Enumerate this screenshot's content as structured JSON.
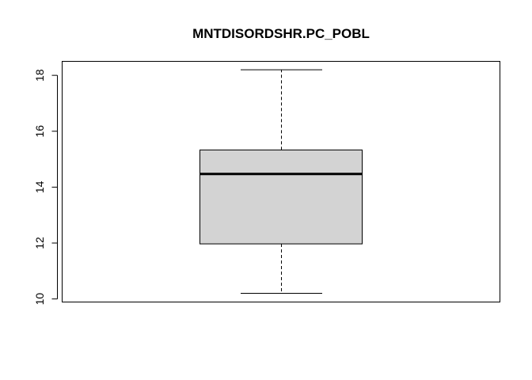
{
  "chart_data": {
    "type": "boxplot",
    "title": "MNTDISORDSHR.PC_POBL",
    "xlabel": "",
    "ylabel": "",
    "ylim": [
      9.89,
      18.5
    ],
    "yticks": [
      10,
      12,
      14,
      16,
      18
    ],
    "grid": false,
    "box": {
      "whisker_low": 10.2,
      "q1": 11.97,
      "median": 14.47,
      "q3": 15.33,
      "whisker_high": 18.2
    },
    "colors": {
      "box_fill": "#d3d3d3",
      "stroke": "#000000"
    }
  }
}
